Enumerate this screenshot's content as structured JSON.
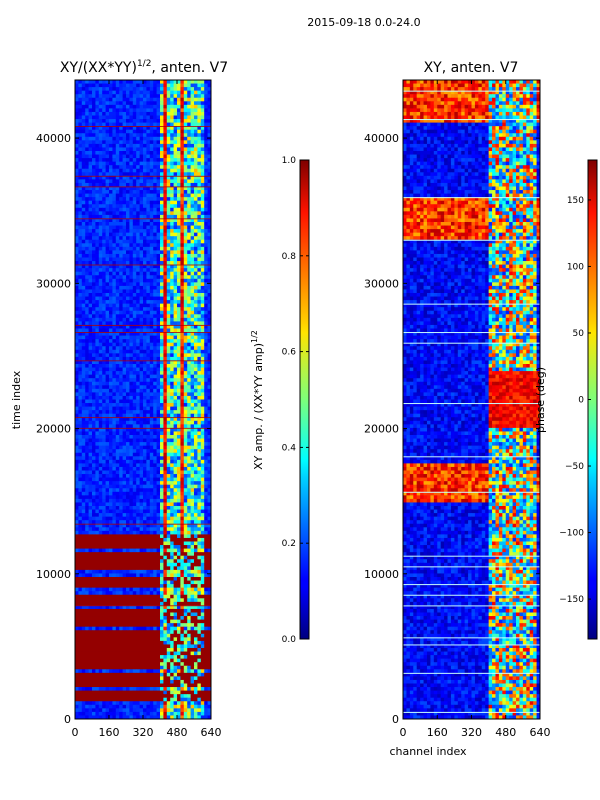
{
  "figure": {
    "suptitle": "2015-09-18 0.0-24.0"
  },
  "chart_data": [
    {
      "type": "heatmap",
      "title": "XY/(XX*YY)",
      "title_exponent": "1/2",
      "title_suffix": ", anten. V7",
      "xlabel": "",
      "ylabel": "time index",
      "xlim": [
        0,
        640
      ],
      "ylim": [
        0,
        44000
      ],
      "x_ticks": [
        0,
        160,
        320,
        480,
        640
      ],
      "y_ticks": [
        0,
        10000,
        20000,
        30000,
        40000
      ],
      "colorbar": {
        "label": "XY amp. / (XX*YY amp)",
        "label_exponent": "1/2",
        "range": [
          0.0,
          1.0
        ],
        "ticks": [
          0.0,
          0.2,
          0.4,
          0.6,
          0.8,
          1.0
        ],
        "tick_labels": [
          "0.0",
          "0.2",
          "0.4",
          "0.6",
          "0.8",
          "1.0"
        ]
      }
    },
    {
      "type": "heatmap",
      "title": "XY, anten. V7",
      "xlabel": "channel index",
      "ylabel": "",
      "xlim": [
        0,
        640
      ],
      "ylim": [
        0,
        44000
      ],
      "x_ticks": [
        0,
        160,
        320,
        480,
        640
      ],
      "y_ticks": [
        0,
        10000,
        20000,
        30000,
        40000
      ],
      "colorbar": {
        "label": "phase (deg)",
        "range": [
          -180,
          180
        ],
        "ticks": [
          -150,
          -100,
          -50,
          0,
          50,
          100,
          150
        ],
        "tick_labels": [
          "−150",
          "−100",
          "−50",
          "0",
          "50",
          "100",
          "150"
        ]
      }
    }
  ]
}
